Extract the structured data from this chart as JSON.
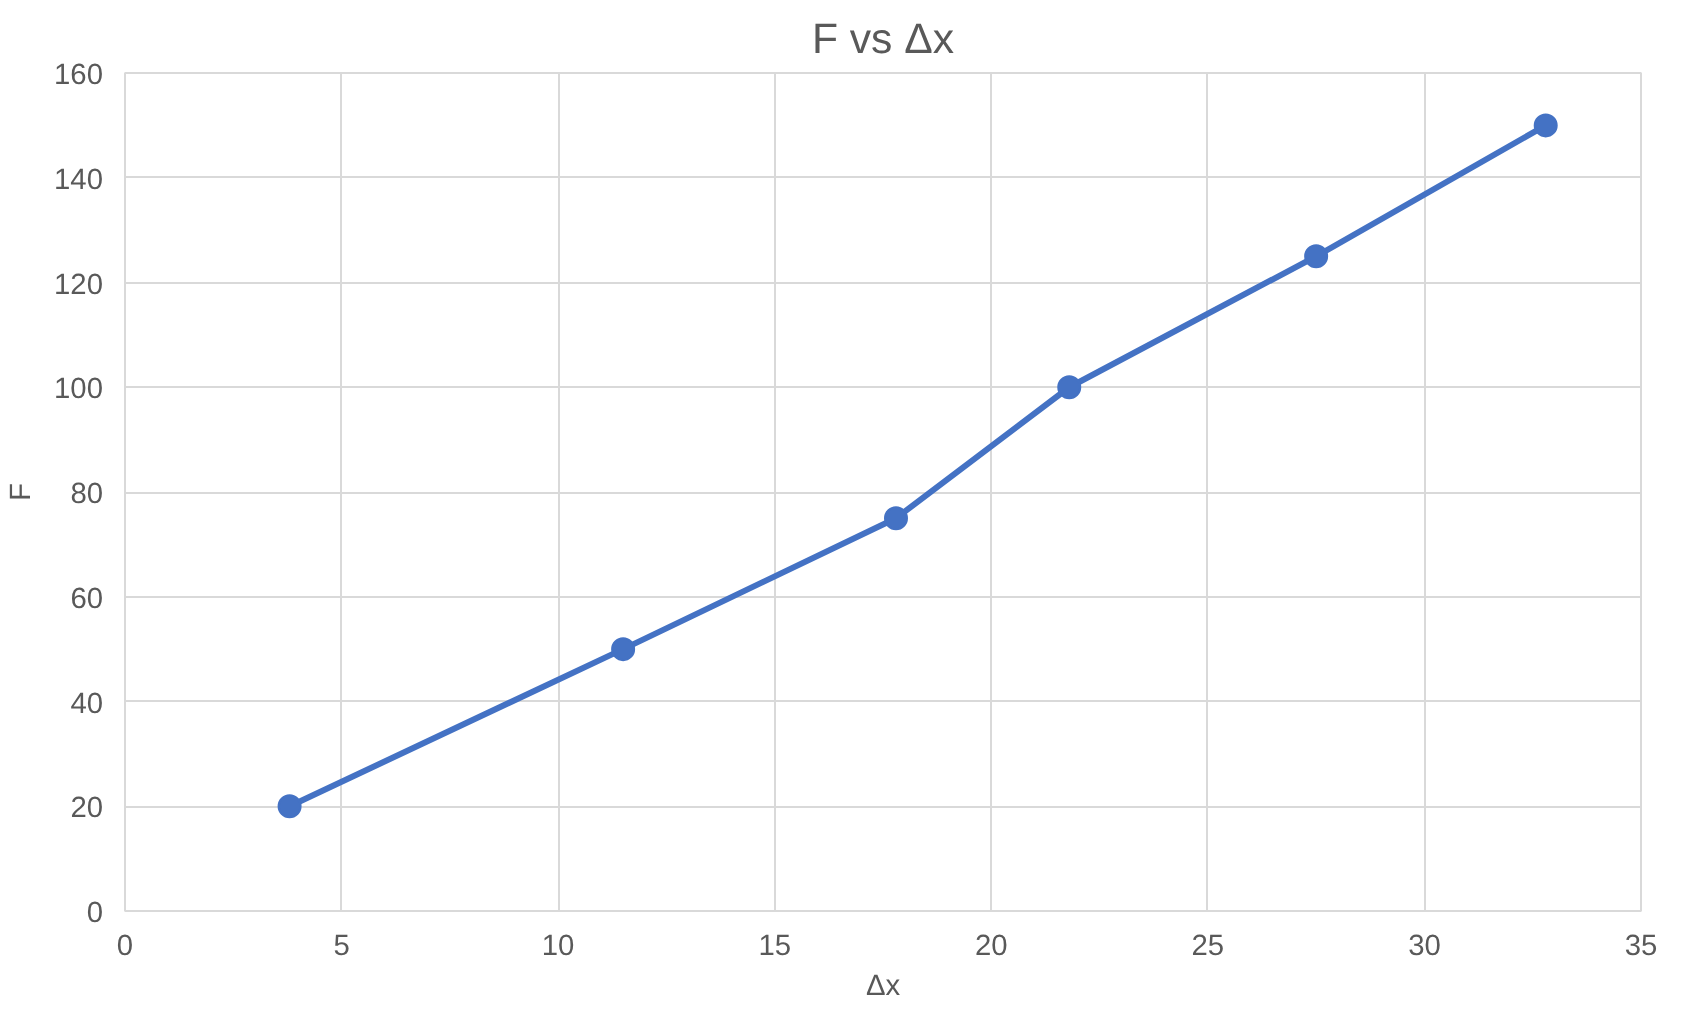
{
  "chart_data": {
    "type": "line",
    "title": "F vs Δx",
    "xlabel": "Δx",
    "ylabel": "F",
    "x": [
      3.8,
      11.5,
      17.8,
      21.8,
      27.5,
      32.8
    ],
    "series": [
      {
        "color": "#4472c4",
        "values": [
          20,
          50,
          75,
          100,
          125,
          150
        ]
      }
    ],
    "xlim": [
      0,
      35
    ],
    "xticks": [
      0,
      5,
      10,
      15,
      20,
      25,
      30,
      35
    ],
    "ylim": [
      0,
      160
    ],
    "yticks": [
      0,
      20,
      40,
      60,
      80,
      100,
      120,
      140,
      160
    ],
    "grid": true,
    "marker": "circle",
    "line_style": "solid"
  }
}
